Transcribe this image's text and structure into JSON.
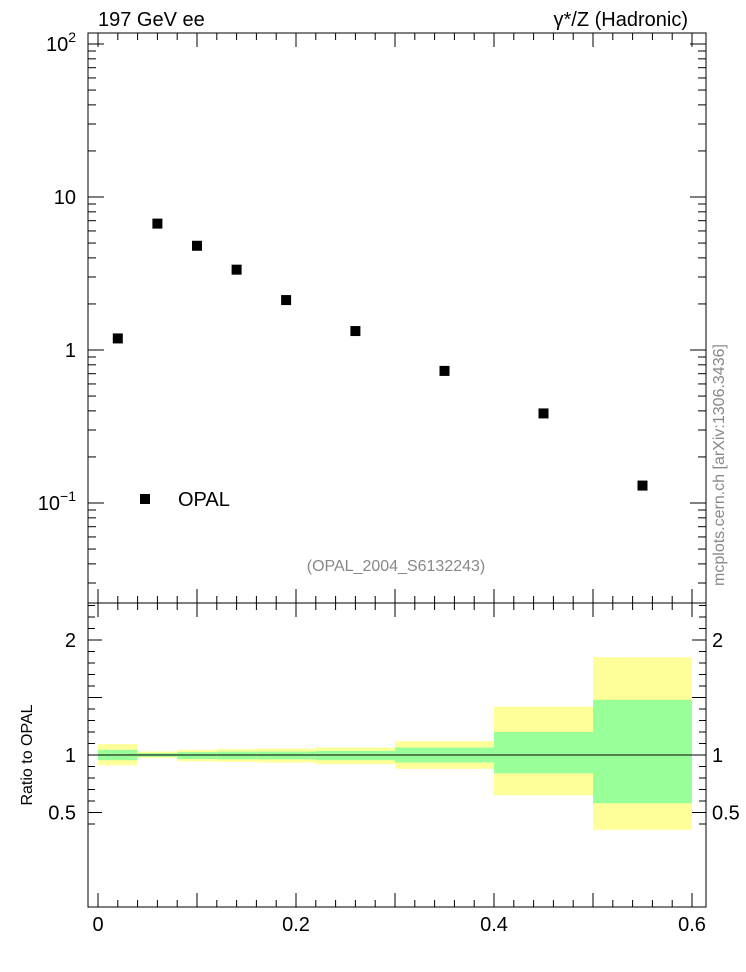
{
  "header": {
    "left_label": "197 GeV ee",
    "right_label": "γ*/Z (Hadronic)"
  },
  "legend": {
    "entry": "OPAL",
    "placement": "bottom-left"
  },
  "analysis_ref": "(OPAL_2004_S6132243)",
  "side_credit": "mcplots.cern.ch [arXiv:1306.3436]",
  "colors": {
    "band_inner": "#99ff99",
    "band_outer": "#ffff99",
    "marker": "#000000",
    "credit": "#888888"
  },
  "chart_data": [
    {
      "type": "scatter",
      "yscale": "log",
      "xlim": [
        0,
        0.6
      ],
      "ylim": [
        0.025,
        140
      ],
      "ytick_labels": [
        "10^-1",
        "1",
        "10",
        "10^2"
      ],
      "series": [
        {
          "name": "OPAL",
          "x": [
            0.02,
            0.06,
            0.1,
            0.14,
            0.19,
            0.26,
            0.35,
            0.45,
            0.55
          ],
          "y": [
            1.19,
            6.7,
            4.8,
            3.35,
            2.12,
            1.33,
            0.73,
            0.385,
            0.13
          ]
        }
      ]
    },
    {
      "type": "area",
      "ylabel": "Ratio to OPAL",
      "xlim": [
        0,
        0.6
      ],
      "ylim": [
        0.35,
        2.3
      ],
      "xtick_labels": [
        "0",
        "0.2",
        "0.4",
        "0.6"
      ],
      "ytick_labels": [
        "0.5",
        "1",
        "2"
      ],
      "reference_line": 1,
      "bins": [
        {
          "x0": 0.0,
          "x1": 0.04,
          "inner": [
            0.955,
            1.045
          ],
          "outer": [
            0.91,
            1.095
          ]
        },
        {
          "x0": 0.04,
          "x1": 0.08,
          "inner": [
            0.985,
            1.016
          ],
          "outer": [
            0.975,
            1.03
          ]
        },
        {
          "x0": 0.08,
          "x1": 0.12,
          "inner": [
            0.965,
            1.025
          ],
          "outer": [
            0.945,
            1.045
          ]
        },
        {
          "x0": 0.12,
          "x1": 0.16,
          "inner": [
            0.962,
            1.03
          ],
          "outer": [
            0.94,
            1.05
          ]
        },
        {
          "x0": 0.16,
          "x1": 0.22,
          "inner": [
            0.962,
            1.03
          ],
          "outer": [
            0.935,
            1.055
          ]
        },
        {
          "x0": 0.22,
          "x1": 0.3,
          "inner": [
            0.955,
            1.035
          ],
          "outer": [
            0.92,
            1.065
          ]
        },
        {
          "x0": 0.3,
          "x1": 0.4,
          "inner": [
            0.935,
            1.065
          ],
          "outer": [
            0.88,
            1.12
          ]
        },
        {
          "x0": 0.4,
          "x1": 0.5,
          "inner": [
            0.84,
            1.2
          ],
          "outer": [
            0.65,
            1.42
          ]
        },
        {
          "x0": 0.5,
          "x1": 0.6,
          "inner": [
            0.58,
            1.48
          ],
          "outer": [
            0.35,
            1.85
          ]
        }
      ]
    }
  ]
}
